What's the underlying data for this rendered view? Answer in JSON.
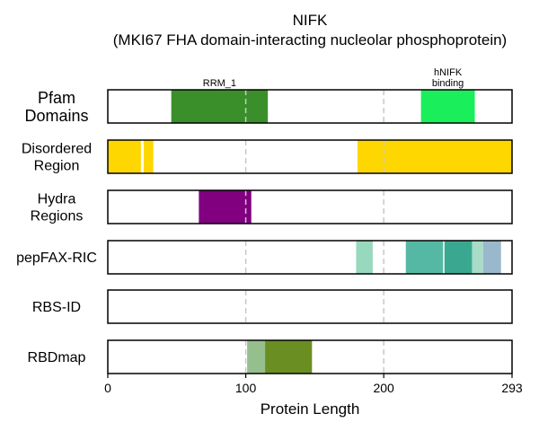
{
  "chart_data": {
    "type": "domain-tracks",
    "title": "NIFK",
    "subtitle": "(MKI67 FHA domain-interacting nucleolar phosphoprotein)",
    "xlabel": "Protein Length",
    "xlim": [
      0,
      293
    ],
    "xticks": [
      0,
      100,
      200,
      293
    ],
    "vlines": [
      100,
      200
    ],
    "tracks": [
      {
        "label": "Pfam\nDomains",
        "segments": [
          {
            "start": 46,
            "end": 116,
            "color": "#3a8f2a",
            "label": "RRM_1"
          },
          {
            "start": 227,
            "end": 266,
            "color": "#1aee5a",
            "label": "hNIFK\nbinding"
          }
        ]
      },
      {
        "label": "Disordered\nRegion",
        "segments": [
          {
            "start": 0,
            "end": 24,
            "color": "#ffd700"
          },
          {
            "start": 26,
            "end": 33,
            "color": "#ffd700"
          },
          {
            "start": 181,
            "end": 293,
            "color": "#ffd700"
          }
        ]
      },
      {
        "label": "Hydra\nRegions",
        "segments": [
          {
            "start": 66,
            "end": 104,
            "color": "#800080"
          }
        ]
      },
      {
        "label": "pepFAX-RIC",
        "segments": [
          {
            "start": 180,
            "end": 192,
            "color": "#98d8bc"
          },
          {
            "start": 216,
            "end": 243,
            "color": "#55b8a4"
          },
          {
            "start": 244,
            "end": 264,
            "color": "#3aa890"
          },
          {
            "start": 264,
            "end": 272,
            "color": "#a8dcc8"
          },
          {
            "start": 272,
            "end": 285,
            "color": "#9ab8cc"
          }
        ]
      },
      {
        "label": "RBS-ID",
        "segments": []
      },
      {
        "label": "RBDmap",
        "segments": [
          {
            "start": 101,
            "end": 114,
            "color": "#95bf8c"
          },
          {
            "start": 114,
            "end": 148,
            "color": "#6b8e23"
          }
        ]
      }
    ]
  }
}
